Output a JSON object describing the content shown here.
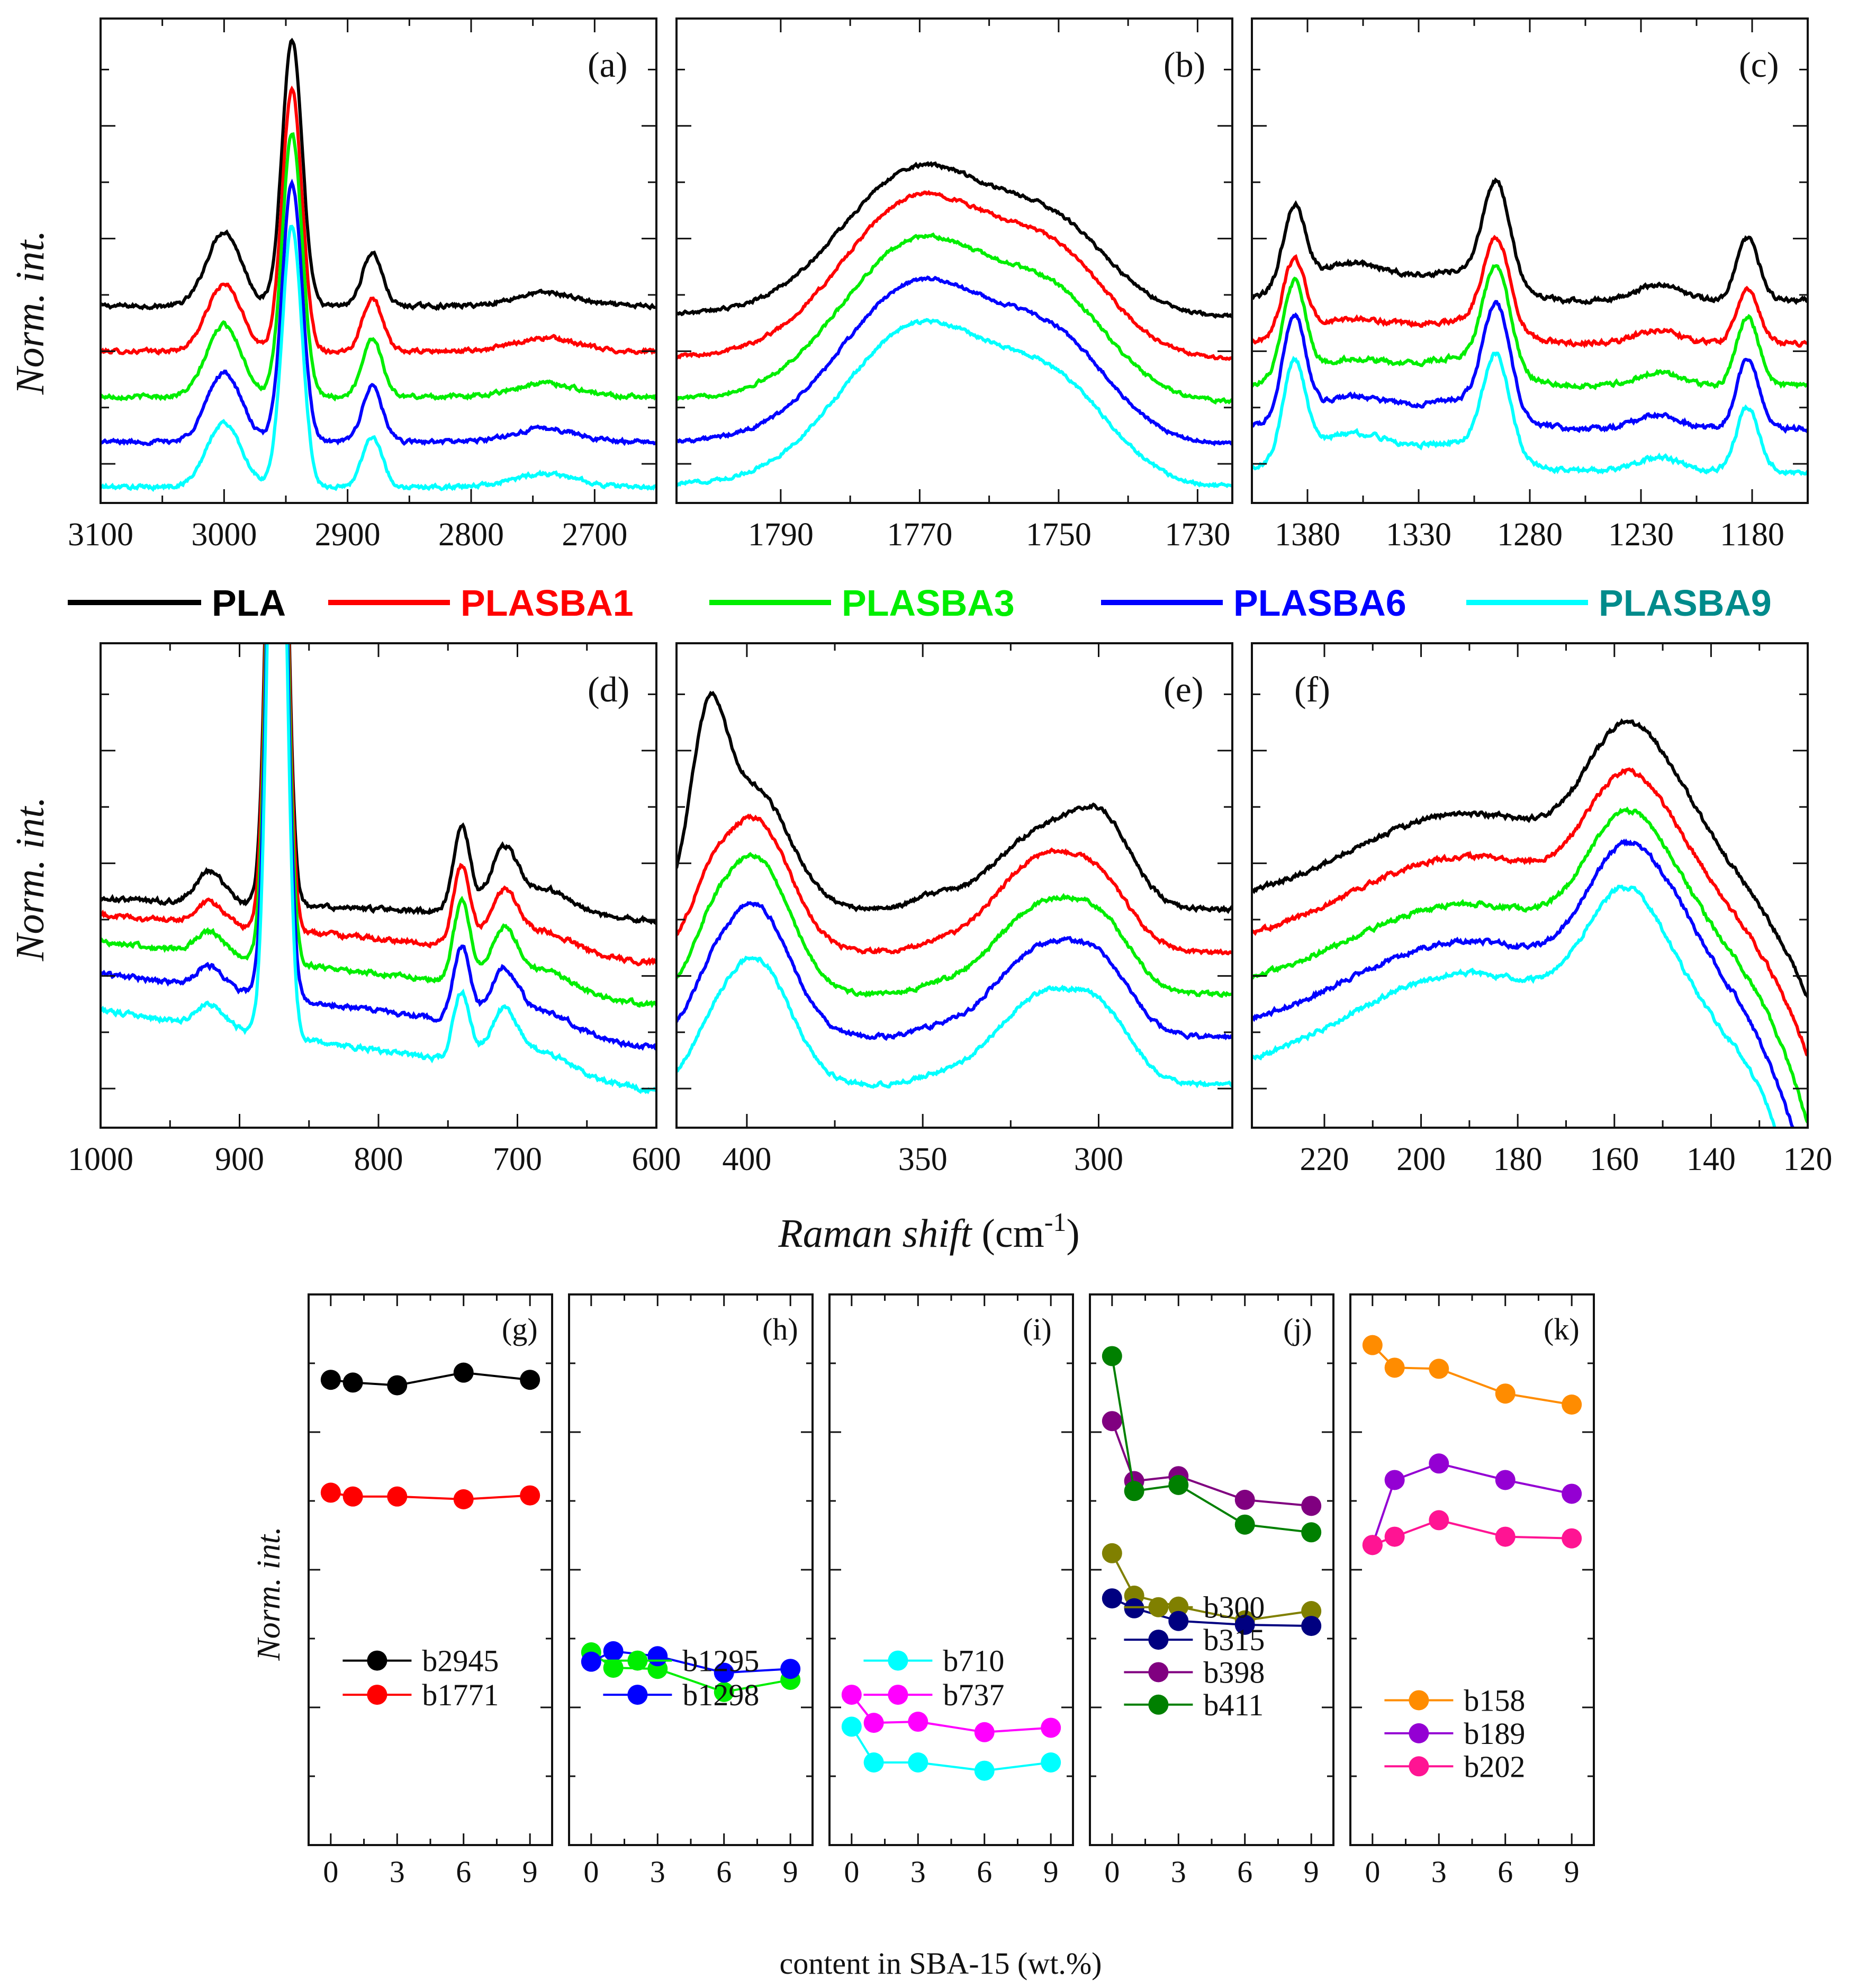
{
  "figure": {
    "top_ylabel": "Norm. int.",
    "bottom_ylabel": "Norm. int.",
    "raman_xlabel_main": "Raman shift",
    "raman_xlabel_unit": "(cm",
    "raman_xlabel_exp": "-1",
    "raman_xlabel_close": ")",
    "content_xlabel": "content in SBA-15 (wt.%)"
  },
  "legend": [
    {
      "label": "PLA",
      "color": "#000000",
      "text_color": "#000000"
    },
    {
      "label": "PLASBA1",
      "color": "#ff0000",
      "text_color": "#ff0000"
    },
    {
      "label": "PLASBA3",
      "color": "#00ee00",
      "text_color": "#00ee00"
    },
    {
      "label": "PLASBA6",
      "color": "#0000ff",
      "text_color": "#0000ff"
    },
    {
      "label": "PLASBA9",
      "color": "#00ffff",
      "text_color": "#008b8b"
    }
  ],
  "chart_data": [
    {
      "type": "line",
      "id": "a",
      "panel_label": "(a)",
      "xlim": [
        3100,
        2650
      ],
      "xticks": [
        "3100",
        "3000",
        "2900",
        "2800",
        "2700"
      ],
      "offsets": [
        0.64,
        0.47,
        0.3,
        0.13,
        -0.04
      ],
      "peaks": [
        {
          "c": 3000,
          "w": 14,
          "a": [
            0.28,
            0.25,
            0.27,
            0.26,
            0.24
          ]
        },
        {
          "c": 2945,
          "w": 8,
          "a": [
            1.0,
            0.98,
            0.99,
            0.97,
            0.98
          ]
        },
        {
          "c": 2880,
          "w": 8,
          "a": [
            0.2,
            0.2,
            0.22,
            0.21,
            0.19
          ]
        },
        {
          "c": 2740,
          "w": 25,
          "a": [
            0.05,
            0.05,
            0.05,
            0.05,
            0.05
          ]
        }
      ],
      "slope": [
        0,
        0,
        0,
        0,
        0
      ],
      "noise": 0.006
    },
    {
      "type": "line",
      "id": "b",
      "panel_label": "(b)",
      "xlim": [
        1805,
        1725
      ],
      "xticks": [
        "1790",
        "1770",
        "1750",
        "1730"
      ],
      "offsets": [
        0.6,
        0.44,
        0.28,
        0.12,
        -0.04
      ],
      "peaks": [
        {
          "c": 1770,
          "w": 11,
          "a": [
            0.55,
            0.6,
            0.6,
            0.6,
            0.6
          ]
        },
        {
          "c": 1750,
          "w": 8,
          "a": [
            0.28,
            0.32,
            0.32,
            0.32,
            0.32
          ]
        }
      ],
      "slope": [
        0.01,
        0.01,
        0.01,
        0.01,
        0.01
      ],
      "noise": 0.005
    },
    {
      "type": "line",
      "id": "c",
      "panel_label": "(c)",
      "xlim": [
        1405,
        1155
      ],
      "xticks": [
        "1380",
        "1330",
        "1280",
        "1230",
        "1180"
      ],
      "offsets": [
        0.66,
        0.5,
        0.34,
        0.18,
        0.02
      ],
      "peaks": [
        {
          "c": 1386,
          "w": 5,
          "a": [
            0.3,
            0.28,
            0.35,
            0.38,
            0.36
          ]
        },
        {
          "c": 1360,
          "w": 20,
          "a": [
            0.14,
            0.09,
            0.1,
            0.12,
            0.14
          ]
        },
        {
          "c": 1295,
          "w": 6,
          "a": [
            0.38,
            0.34,
            0.38,
            0.4,
            0.37
          ]
        },
        {
          "c": 1310,
          "w": 18,
          "a": [
            0.1,
            0.08,
            0.1,
            0.1,
            0.1
          ]
        },
        {
          "c": 1222,
          "w": 10,
          "a": [
            0.06,
            0.05,
            0.05,
            0.05,
            0.05
          ]
        },
        {
          "c": 1182,
          "w": 5,
          "a": [
            0.24,
            0.2,
            0.26,
            0.26,
            0.24
          ]
        }
      ],
      "slope": [
        0,
        0,
        0,
        0,
        0
      ],
      "noise": 0.007
    },
    {
      "type": "line",
      "id": "d",
      "panel_label": "(d)",
      "xlim": [
        1000,
        600
      ],
      "xticks": [
        "1000",
        "900",
        "800",
        "700",
        "600"
      ],
      "offsets": [
        0.68,
        0.52,
        0.36,
        0.2,
        0.04
      ],
      "peaks": [
        {
          "c": 873,
          "w": 6,
          "a": [
            3.0,
            3.0,
            3.0,
            3.0,
            3.0
          ]
        },
        {
          "c": 921,
          "w": 10,
          "a": [
            0.12,
            0.08,
            0.08,
            0.08,
            0.08
          ]
        },
        {
          "c": 740,
          "w": 6,
          "a": [
            0.32,
            0.3,
            0.3,
            0.28,
            0.26
          ]
        },
        {
          "c": 710,
          "w": 10,
          "a": [
            0.22,
            0.2,
            0.2,
            0.2,
            0.2
          ]
        },
        {
          "c": 680,
          "w": 20,
          "a": [
            0.1,
            0.08,
            0.08,
            0.08,
            0.08
          ]
        }
      ],
      "slope": [
        0.08,
        0.18,
        0.24,
        0.28,
        0.3
      ],
      "noise": 0.007
    },
    {
      "type": "line",
      "id": "e",
      "panel_label": "(e)",
      "xlim": [
        420,
        262
      ],
      "xticks": [
        "400",
        "350",
        "300"
      ],
      "offsets": [
        0.72,
        0.56,
        0.4,
        0.24,
        0.06
      ],
      "peaks": [
        {
          "c": 411,
          "w": 5,
          "a": [
            0.6,
            0.12,
            0.1,
            0.08,
            0.06
          ]
        },
        {
          "c": 398,
          "w": 10,
          "a": [
            0.45,
            0.5,
            0.52,
            0.5,
            0.48
          ]
        },
        {
          "c": 347,
          "w": 6,
          "a": [
            0.04,
            0.02,
            0.02,
            0.02,
            0.02
          ]
        },
        {
          "c": 315,
          "w": 14,
          "a": [
            0.3,
            0.36,
            0.34,
            0.34,
            0.34
          ]
        },
        {
          "c": 298,
          "w": 8,
          "a": [
            0.22,
            0.12,
            0.14,
            0.14,
            0.14
          ]
        }
      ],
      "slope": [
        0,
        0,
        0,
        0,
        0
      ],
      "noise": 0.006
    },
    {
      "type": "line",
      "id": "f",
      "panel_label": "(f)",
      "xlim": [
        235,
        120
      ],
      "xticks": [
        "220",
        "200",
        "180",
        "160",
        "140",
        "120"
      ],
      "offsets": [
        0.72,
        0.56,
        0.4,
        0.24,
        0.08
      ],
      "peaks": [
        {
          "c": 190,
          "w": 25,
          "a": [
            0.36,
            0.36,
            0.34,
            0.36,
            0.4
          ]
        },
        {
          "c": 158,
          "w": 8,
          "a": [
            0.48,
            0.46,
            0.48,
            0.5,
            0.5
          ]
        },
        {
          "c": 145,
          "w": 8,
          "a": [
            0.24,
            0.22,
            0.22,
            0.26,
            0.18
          ]
        }
      ],
      "slope": [
        0,
        0,
        0,
        0,
        0
      ],
      "drop": [
        0.62,
        0.72,
        0.9,
        1.0,
        1.1
      ],
      "noise": 0.007
    },
    {
      "type": "line",
      "id": "g",
      "panel_label": "(g)",
      "x": [
        0,
        1,
        3,
        6,
        9
      ],
      "xlim": [
        -1,
        10
      ],
      "ylim": [
        0,
        1
      ],
      "series": [
        {
          "name": "b2945",
          "color": "#000000",
          "values": [
            0.845,
            0.84,
            0.835,
            0.858,
            0.845
          ]
        },
        {
          "name": "b1771",
          "color": "#ff0000",
          "values": [
            0.64,
            0.633,
            0.633,
            0.628,
            0.635
          ]
        }
      ]
    },
    {
      "type": "line",
      "id": "h",
      "panel_label": "(h)",
      "x": [
        0,
        1,
        3,
        6,
        9
      ],
      "xlim": [
        -1,
        10
      ],
      "ylim": [
        0,
        1
      ],
      "series": [
        {
          "name": "b1295",
          "color": "#00ee00",
          "values": [
            0.35,
            0.322,
            0.32,
            0.278,
            0.3
          ]
        },
        {
          "name": "b1298",
          "color": "#0000ff",
          "values": [
            0.333,
            0.352,
            0.343,
            0.313,
            0.32
          ]
        }
      ]
    },
    {
      "type": "line",
      "id": "i",
      "panel_label": "(i)",
      "x": [
        0,
        1,
        3,
        6,
        9
      ],
      "xlim": [
        -1,
        10
      ],
      "ylim": [
        0,
        1
      ],
      "series": [
        {
          "name": "b710",
          "color": "#00ffff",
          "values": [
            0.215,
            0.15,
            0.15,
            0.135,
            0.15
          ]
        },
        {
          "name": "b737",
          "color": "#ff00ff",
          "values": [
            0.273,
            0.222,
            0.224,
            0.205,
            0.213
          ]
        }
      ]
    },
    {
      "type": "line",
      "id": "j",
      "panel_label": "(j)",
      "x": [
        0,
        1,
        3,
        6,
        9
      ],
      "xlim": [
        -1,
        10
      ],
      "ylim": [
        0,
        1
      ],
      "series": [
        {
          "name": "b300",
          "color": "#808000",
          "values": [
            0.53,
            0.453,
            0.433,
            0.408,
            0.425
          ]
        },
        {
          "name": "b315",
          "color": "#000080",
          "values": [
            0.448,
            0.43,
            0.407,
            0.4,
            0.398
          ]
        },
        {
          "name": "b398",
          "color": "#800080",
          "values": [
            0.77,
            0.661,
            0.67,
            0.627,
            0.616
          ]
        },
        {
          "name": "b411",
          "color": "#008000",
          "values": [
            0.888,
            0.643,
            0.654,
            0.582,
            0.568
          ]
        }
      ]
    },
    {
      "type": "line",
      "id": "k",
      "panel_label": "(k)",
      "x": [
        0,
        1,
        3,
        6,
        9
      ],
      "xlim": [
        -1,
        10
      ],
      "ylim": [
        0,
        1
      ],
      "series": [
        {
          "name": "b158",
          "color": "#ff8c00",
          "values": [
            0.908,
            0.867,
            0.865,
            0.82,
            0.8
          ]
        },
        {
          "name": "b189",
          "color": "#9400d3",
          "values": [
            0.545,
            0.663,
            0.693,
            0.663,
            0.638
          ]
        },
        {
          "name": "b202",
          "color": "#ff1493",
          "values": [
            0.545,
            0.56,
            0.59,
            0.56,
            0.557
          ]
        }
      ]
    }
  ],
  "bottom_xticks": [
    "0",
    "3",
    "6",
    "9"
  ]
}
